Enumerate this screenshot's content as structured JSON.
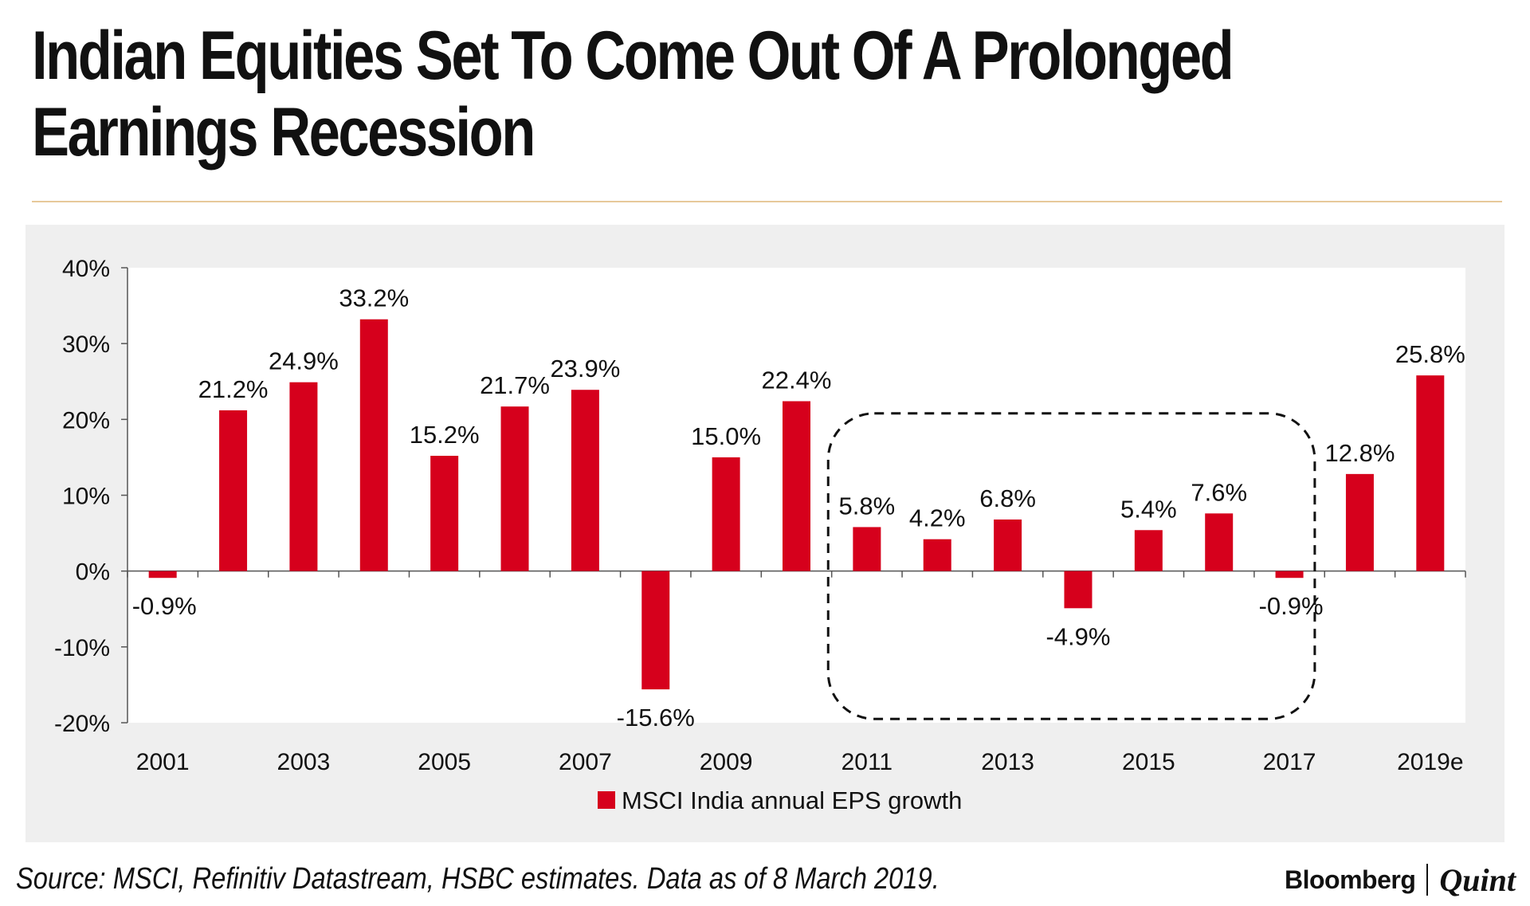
{
  "header": {
    "title_line1": "Indian Equities Set To Come Out Of A Prolonged",
    "title_line2": "Earnings Recession"
  },
  "footer": {
    "source": "Source: MSCI, Refinitiv Datastream, HSBC estimates. Data as of 8 March 2019.",
    "logo_part1": "Bloomberg",
    "logo_part2": "Quint"
  },
  "colors": {
    "bar": "#d6001c",
    "panel_bg": "#efefef",
    "plot_bg": "#ffffff",
    "divider": "#e7c99a"
  },
  "chart_data": {
    "type": "bar",
    "title": "Indian Equities Set To Come Out Of A Prolonged Earnings Recession",
    "categories": [
      "2001",
      "2002",
      "2003",
      "2004",
      "2005",
      "2006",
      "2007",
      "2008",
      "2009",
      "2010",
      "2011",
      "2012",
      "2013",
      "2014",
      "2015",
      "2016",
      "2017",
      "2018",
      "2019e"
    ],
    "tick_labels": [
      "2001",
      "",
      "2003",
      "",
      "2005",
      "",
      "2007",
      "",
      "2009",
      "",
      "2011",
      "",
      "2013",
      "",
      "2015",
      "",
      "2017",
      "",
      "2019e"
    ],
    "series": [
      {
        "name": "MSCI India annual EPS growth",
        "values": [
          -0.9,
          21.2,
          24.9,
          33.2,
          15.2,
          21.7,
          23.9,
          -15.6,
          15.0,
          22.4,
          5.8,
          4.2,
          6.8,
          -4.9,
          5.4,
          7.6,
          -0.9,
          12.8,
          25.8
        ],
        "data_labels": [
          "-0.9%",
          "21.2%",
          "24.9%",
          "33.2%",
          "15.2%",
          "21.7%",
          "23.9%",
          "-15.6%",
          "15.0%",
          "22.4%",
          "5.8%",
          "4.2%",
          "6.8%",
          "-4.9%",
          "5.4%",
          "7.6%",
          "-0.9%",
          "12.8%",
          "25.8%"
        ]
      }
    ],
    "ylim": [
      -20,
      40
    ],
    "yticks": [
      -20,
      -10,
      0,
      10,
      20,
      30,
      40
    ],
    "ytick_labels": [
      "-20%",
      "-10%",
      "0%",
      "10%",
      "20%",
      "30%",
      "40%"
    ],
    "xlabel": "",
    "ylabel": "",
    "legend": {
      "position": "bottom",
      "entries": [
        "MSCI India annual EPS growth"
      ]
    },
    "annotation": {
      "type": "dashed-rounded-box",
      "from_category": "2011",
      "to_category": "2017"
    },
    "grid": false
  }
}
